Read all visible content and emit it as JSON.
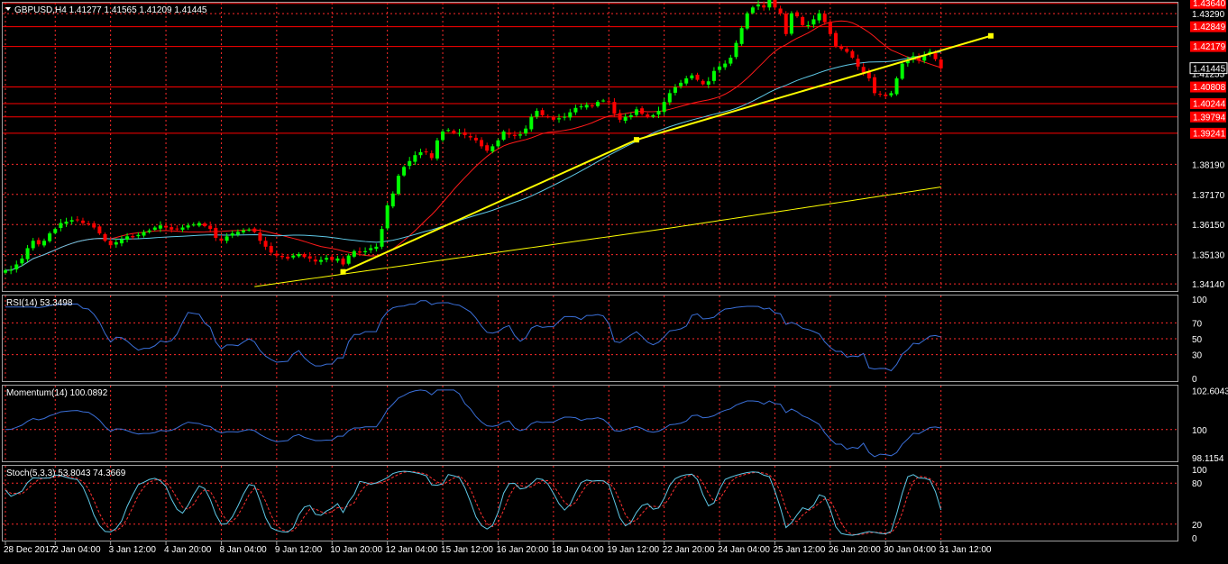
{
  "chart_data": {
    "type": "candlestick",
    "symbol_header": "GBPUSD,H4  1.41277 1.41565 1.41209 1.41445",
    "price_axis": {
      "range": [
        1.339,
        1.4357
      ],
      "tick_labels": [
        "1.43290",
        "1.38190",
        "1.37170",
        "1.36150",
        "1.35130",
        "1.34140"
      ],
      "current_price": "1.41445",
      "current_price_behind": "1.41255",
      "levels": [
        {
          "label": "1.43640",
          "value": 1.4364
        },
        {
          "label": "1.42849",
          "value": 1.42849
        },
        {
          "label": "1.42179",
          "value": 1.42179
        },
        {
          "label": "1.40808",
          "value": 1.40808
        },
        {
          "label": "1.40244",
          "value": 1.40244
        },
        {
          "label": "1.39794",
          "value": 1.39794
        },
        {
          "label": "1.39241",
          "value": 1.39241
        }
      ]
    },
    "x_labels": [
      {
        "text": "28 Dec 2017",
        "idx": 0
      },
      {
        "text": "2 Jan 04:00",
        "idx": 9
      },
      {
        "text": "3 Jan 12:00",
        "idx": 19
      },
      {
        "text": "4 Jan 20:00",
        "idx": 29
      },
      {
        "text": "8 Jan 04:00",
        "idx": 39
      },
      {
        "text": "9 Jan 12:00",
        "idx": 49
      },
      {
        "text": "10 Jan 20:00",
        "idx": 59
      },
      {
        "text": "12 Jan 04:00",
        "idx": 69
      },
      {
        "text": "15 Jan 12:00",
        "idx": 79
      },
      {
        "text": "16 Jan 20:00",
        "idx": 89
      },
      {
        "text": "18 Jan 04:00",
        "idx": 99
      },
      {
        "text": "19 Jan 12:00",
        "idx": 109
      },
      {
        "text": "22 Jan 20:00",
        "idx": 119
      },
      {
        "text": "24 Jan 04:00",
        "idx": 129
      },
      {
        "text": "25 Jan 12:00",
        "idx": 139
      },
      {
        "text": "26 Jan 20:00",
        "idx": 149
      },
      {
        "text": "30 Jan 04:00",
        "idx": 159
      },
      {
        "text": "31 Jan 12:00",
        "idx": 169
      }
    ],
    "close": [
      1.346,
      1.3462,
      1.348,
      1.35,
      1.3535,
      1.356,
      1.3548,
      1.356,
      1.3585,
      1.36,
      1.362,
      1.3625,
      1.363,
      1.3632,
      1.362,
      1.3618,
      1.3605,
      1.3585,
      1.356,
      1.3545,
      1.3555,
      1.3565,
      1.3575,
      1.3572,
      1.358,
      1.359,
      1.3595,
      1.3605,
      1.3612,
      1.3605,
      1.3598,
      1.36,
      1.3605,
      1.3612,
      1.3615,
      1.362,
      1.361,
      1.36,
      1.357,
      1.356,
      1.3575,
      1.3585,
      1.359,
      1.3595,
      1.3598,
      1.359,
      1.356,
      1.354,
      1.352,
      1.351,
      1.3505,
      1.35,
      1.351,
      1.3515,
      1.3505,
      1.35,
      1.349,
      1.3495,
      1.3502,
      1.3495,
      1.35,
      1.348,
      1.351,
      1.3525,
      1.352,
      1.3525,
      1.3535,
      1.354,
      1.36,
      1.368,
      1.372,
      1.378,
      1.381,
      1.383,
      1.385,
      1.386,
      1.386,
      1.384,
      1.39,
      1.393,
      1.3935,
      1.3925,
      1.3925,
      1.3918,
      1.391,
      1.39,
      1.388,
      1.3865,
      1.388,
      1.39,
      1.393,
      1.392,
      1.3915,
      1.392,
      1.394,
      1.398,
      1.4,
      1.3985,
      1.398,
      1.397,
      1.3975,
      1.398,
      1.3995,
      1.401,
      1.4015,
      1.402,
      1.4015,
      1.403,
      1.4035,
      1.403,
      1.399,
      1.397,
      1.398,
      1.3985,
      1.4005,
      1.399,
      1.398,
      1.3985,
      1.4,
      1.403,
      1.406,
      1.408,
      1.4095,
      1.411,
      1.412,
      1.4105,
      1.409,
      1.41,
      1.4135,
      1.415,
      1.416,
      1.418,
      1.423,
      1.428,
      1.433,
      1.435,
      1.436,
      1.435,
      1.439,
      1.435,
      1.433,
      1.426,
      1.433,
      1.432,
      1.429,
      1.429,
      1.431,
      1.433,
      1.43,
      1.426,
      1.422,
      1.421,
      1.42,
      1.418,
      1.415,
      1.413,
      1.411,
      1.406,
      1.4055,
      1.405,
      1.406,
      1.411,
      1.416,
      1.417,
      1.4185,
      1.417,
      1.419,
      1.42,
      1.4175,
      1.4144
    ],
    "moving_averages": [
      {
        "name": "red",
        "color": "#ff1a1a",
        "period": 20
      },
      {
        "name": "cyan",
        "color": "#5ec8e6",
        "period": 50
      },
      {
        "name": "yellow",
        "color": "#ffff00",
        "period": 200
      }
    ],
    "trendline": {
      "color": "#ffff00",
      "points": [
        [
          61,
          1.3455
        ],
        [
          114,
          1.3902
        ],
        [
          178,
          1.4254
        ]
      ]
    },
    "colors": {
      "bull": "#00ff00",
      "bear": "#ff0000",
      "grid": "#ff2a2a",
      "axis": "#a0a0a0",
      "level": "#ff0000"
    },
    "panels": {
      "rsi": {
        "title": "RSI(14) 53.3498",
        "range": [
          0,
          100
        ],
        "ticks": [
          "100",
          "70",
          "50",
          "30",
          "0"
        ]
      },
      "momentum": {
        "title": "Momentum(14) 100.0892",
        "range": [
          98.0,
          102.7
        ],
        "ticks": [
          "102.6043",
          "100",
          "98.1154"
        ]
      },
      "stoch": {
        "title": "Stoch(5,3,3) 53.8043 74.3669",
        "range": [
          0,
          100
        ],
        "ticks": [
          "100",
          "80",
          "20",
          "0"
        ],
        "main_color": "#5ec8e6",
        "signal_color": "#ff3030"
      }
    }
  }
}
